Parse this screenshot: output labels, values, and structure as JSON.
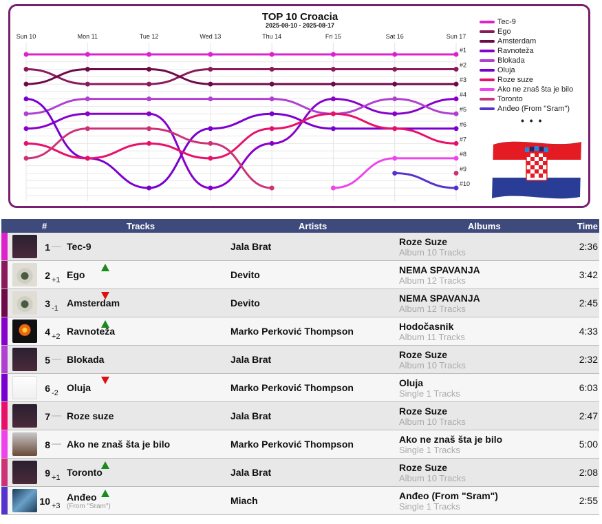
{
  "chart_data": {
    "type": "line",
    "title": "TOP 10 Croacia",
    "subtitle": "2025-08-10 - 2025-08-17",
    "x": [
      "Sun 10",
      "Mon 11",
      "Tue 12",
      "Wed 13",
      "Thu 14",
      "Fri 15",
      "Sat 16",
      "Sun 17"
    ],
    "rank_labels": [
      "#1",
      "#2",
      "#3",
      "#4",
      "#5",
      "#6",
      "#7",
      "#8",
      "#9",
      "#10"
    ],
    "ylim": [
      1,
      10
    ],
    "y_inverted": true,
    "grid": true,
    "legend": "right",
    "series": [
      {
        "name": "Tec-9",
        "color": "#dd22cc",
        "values": [
          1,
          1,
          1,
          1,
          1,
          1,
          1,
          1
        ]
      },
      {
        "name": "Ego",
        "color": "#8a1a5c",
        "values": [
          2,
          3,
          3,
          2,
          2,
          2,
          2,
          2
        ]
      },
      {
        "name": "Amsterdam",
        "color": "#6e0a4a",
        "values": [
          3,
          2,
          2,
          3,
          3,
          3,
          3,
          3
        ]
      },
      {
        "name": "Ravnoteža",
        "color": "#8800cc",
        "values": [
          6,
          5,
          5,
          10,
          7,
          4,
          5,
          4
        ]
      },
      {
        "name": "Blokada",
        "color": "#b040d0",
        "values": [
          5,
          4,
          4,
          4,
          4,
          5,
          4,
          5
        ]
      },
      {
        "name": "Oluja",
        "color": "#7a00d0",
        "values": [
          4,
          8,
          10,
          6,
          5,
          6,
          6,
          6
        ]
      },
      {
        "name": "Roze suze",
        "color": "#e8106a",
        "values": [
          7,
          8,
          7,
          8,
          6,
          5,
          6,
          7
        ]
      },
      {
        "name": "Ako ne znaš šta je bilo",
        "color": "#ee44ee",
        "values": [
          null,
          null,
          null,
          null,
          null,
          10,
          8,
          8
        ]
      },
      {
        "name": "Toronto",
        "color": "#cc3377",
        "values": [
          8,
          6,
          6,
          7,
          10,
          null,
          null,
          9
        ]
      },
      {
        "name": "Anđeo (From \"Sram\")",
        "color": "#5533cc",
        "values": [
          null,
          null,
          null,
          null,
          null,
          null,
          9,
          10
        ]
      }
    ]
  },
  "legend_more": "• • •",
  "table": {
    "headers": {
      "num": "#",
      "tracks": "Tracks",
      "artists": "Artists",
      "albums": "Albums",
      "time": "Time"
    },
    "rows": [
      {
        "pos": "1",
        "move": "",
        "dir": "same",
        "track": "Tec-9",
        "sub": "",
        "artist": "Jala Brat",
        "album": "Roze Suze",
        "album_info": "Album 10 Tracks",
        "time": "2:36",
        "color": "#dd22cc",
        "cover": "dark"
      },
      {
        "pos": "2",
        "move": "+1",
        "dir": "up",
        "track": "Ego",
        "sub": "",
        "artist": "Devito",
        "album": "NEMA SPAVANJA",
        "album_info": "Album 12 Tracks",
        "time": "3:42",
        "color": "#8a1a5c",
        "cover": "eye"
      },
      {
        "pos": "3",
        "move": "-1",
        "dir": "down",
        "track": "Amsterdam",
        "sub": "",
        "artist": "Devito",
        "album": "NEMA SPAVANJA",
        "album_info": "Album 12 Tracks",
        "time": "2:45",
        "color": "#6e0a4a",
        "cover": "eye"
      },
      {
        "pos": "4",
        "move": "+2",
        "dir": "up",
        "track": "Ravnoteža",
        "sub": "",
        "artist": "Marko Perković Thompson",
        "album": "Hodočasnik",
        "album_info": "Album 11 Tracks",
        "time": "4:33",
        "color": "#8800cc",
        "cover": "fire"
      },
      {
        "pos": "5",
        "move": "",
        "dir": "same",
        "track": "Blokada",
        "sub": "",
        "artist": "Jala Brat",
        "album": "Roze Suze",
        "album_info": "Album 10 Tracks",
        "time": "2:32",
        "color": "#b040d0",
        "cover": "dark"
      },
      {
        "pos": "6",
        "move": "-2",
        "dir": "down",
        "track": "Oluja",
        "sub": "",
        "artist": "Marko Perković Thompson",
        "album": "Oluja",
        "album_info": "Single 1 Tracks",
        "time": "6:03",
        "color": "#7a00d0",
        "cover": "light"
      },
      {
        "pos": "7",
        "move": "",
        "dir": "same",
        "track": "Roze suze",
        "sub": "",
        "artist": "Jala Brat",
        "album": "Roze Suze",
        "album_info": "Album 10 Tracks",
        "time": "2:47",
        "color": "#e8106a",
        "cover": "dark"
      },
      {
        "pos": "8",
        "move": "",
        "dir": "same",
        "track": "Ako ne znaš šta je bilo",
        "sub": "",
        "artist": "Marko Perković Thompson",
        "album": "Ako ne znaš šta je bilo",
        "album_info": "Single 1 Tracks",
        "time": "5:00",
        "color": "#ee44ee",
        "cover": "poster"
      },
      {
        "pos": "9",
        "move": "+1",
        "dir": "up",
        "track": "Toronto",
        "sub": "",
        "artist": "Jala Brat",
        "album": "Roze Suze",
        "album_info": "Album 10 Tracks",
        "time": "2:08",
        "color": "#cc3377",
        "cover": "dark"
      },
      {
        "pos": "10",
        "move": "+3",
        "dir": "up",
        "track": "Anđeo",
        "sub": "(From \"Sram\")",
        "artist": "Miach",
        "album": "Anđeo (From \"Sram\")",
        "album_info": "Single 1 Tracks",
        "time": "2:55",
        "color": "#5533cc",
        "cover": "blue"
      }
    ]
  }
}
